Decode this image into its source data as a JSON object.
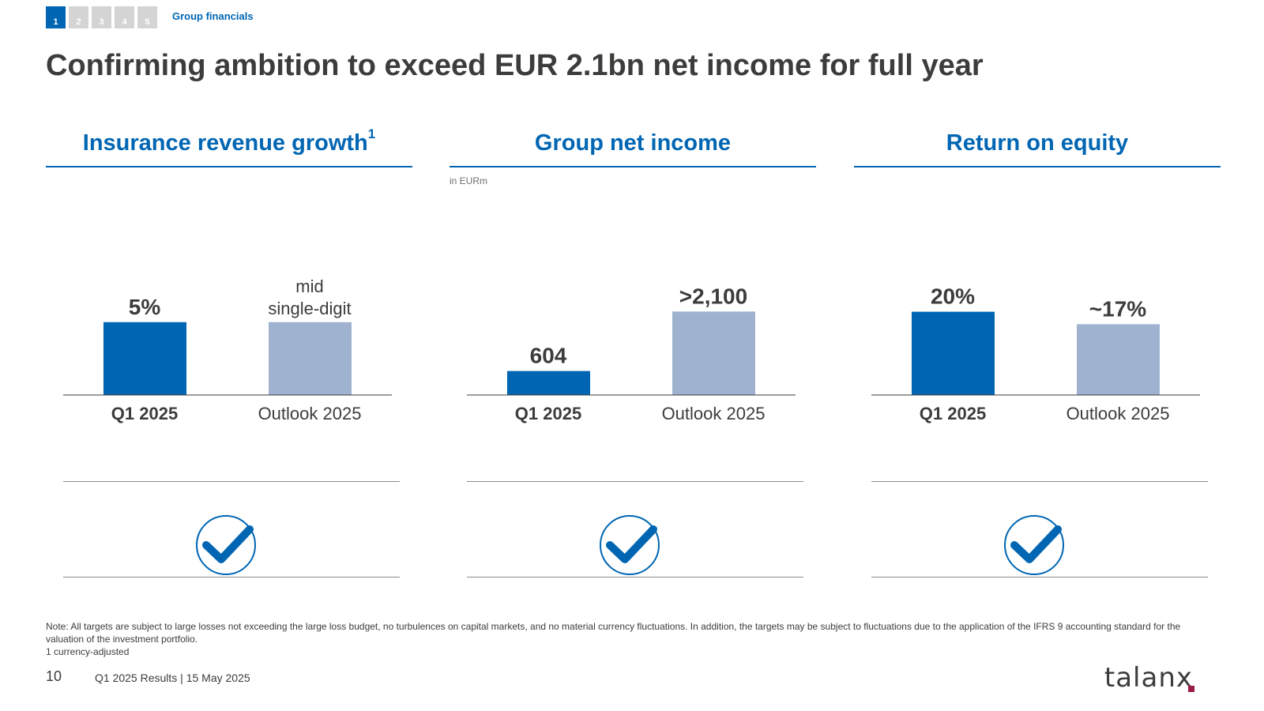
{
  "nav": {
    "tabs": [
      "1",
      "2",
      "3",
      "4",
      "5"
    ],
    "active_tab": "1",
    "section_label": "Group financials"
  },
  "title": "Confirming ambition to exceed EUR 2.1bn net income for full year",
  "colors": {
    "primary": "#0066b3",
    "outlook": "#9fb2d0",
    "text": "#3c3c3b",
    "logo_dot": "#9b1d42"
  },
  "panels": [
    {
      "heading": "Insurance revenue growth",
      "superscript": "1",
      "unit_note": ""
    },
    {
      "heading": "Group net income",
      "superscript": "",
      "unit_note": "in EURm"
    },
    {
      "heading": "Return on equity",
      "superscript": "",
      "unit_note": ""
    }
  ],
  "chart_data": [
    {
      "type": "bar",
      "title": "Insurance revenue growth",
      "categories": [
        "Q1 2025",
        "Outlook 2025"
      ],
      "values": [
        5,
        5
      ],
      "value_labels": [
        "5%",
        "mid\nsingle-digit"
      ],
      "ylim": [
        0,
        9
      ]
    },
    {
      "type": "bar",
      "title": "Group net income",
      "ylabel": "in EURm",
      "categories": [
        "Q1 2025",
        "Outlook 2025"
      ],
      "values": [
        604,
        2100
      ],
      "value_labels": [
        "604",
        ">2,100"
      ],
      "ylim": [
        0,
        3300
      ]
    },
    {
      "type": "bar",
      "title": "Return on equity",
      "categories": [
        "Q1 2025",
        "Outlook 2025"
      ],
      "values": [
        20,
        17
      ],
      "value_labels": [
        "20%",
        "~17%"
      ],
      "ylim": [
        0,
        31.5
      ]
    }
  ],
  "status_icons": [
    "check-circle-icon",
    "check-circle-icon",
    "check-circle-icon"
  ],
  "note": {
    "text": "Note: All targets are subject to large losses not exceeding the large loss budget, no turbulences on capital markets, and no material currency fluctuations. In addition, the targets may be subject to fluctuations due to the application of the IFRS 9 accounting standard for the valuation of the investment portfolio.",
    "footnote": "1 currency-adjusted"
  },
  "footer": {
    "page_number": "10",
    "text": "Q1 2025 Results | 15 May 2025",
    "logo": "talanx"
  }
}
